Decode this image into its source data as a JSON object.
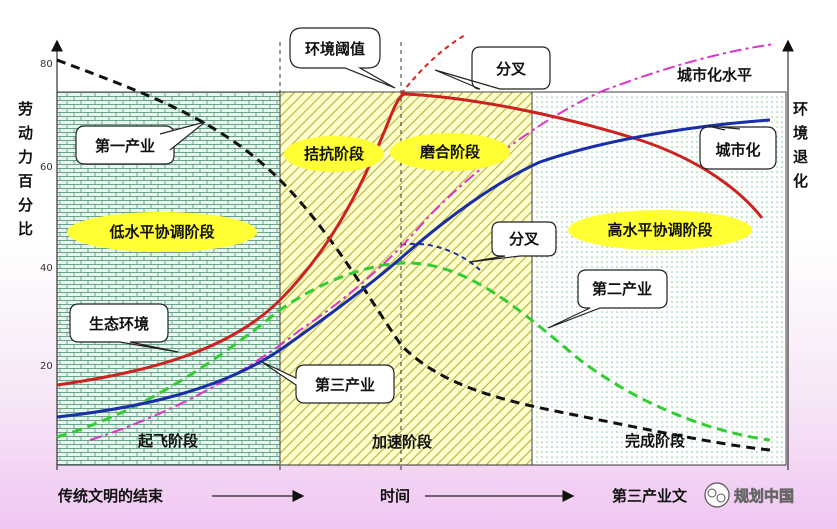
{
  "y_axis": {
    "label_chars": [
      "劳",
      "动",
      "力",
      "百",
      "分",
      "比"
    ],
    "ticks": [
      "80",
      "60",
      "40",
      "20"
    ]
  },
  "right_axis": {
    "label_chars": [
      "环",
      "境",
      "退",
      "化"
    ]
  },
  "stages": {
    "takeoff": "起飞阶段",
    "acceleration": "加速阶段",
    "completion": "完成阶段"
  },
  "phases": {
    "resist": "拮抗阶段",
    "adapt": "磨合阶段",
    "low_coord": "低水平协调阶段",
    "high_coord": "高水平协调阶段"
  },
  "callouts": {
    "threshold": "环境阈值",
    "fork_top": "分叉",
    "fork_mid": "分叉",
    "primary": "第一产业",
    "secondary": "第二产业",
    "tertiary": "第三产业",
    "ecology": "生态环境",
    "urbanization": "城市化",
    "urban_level": "城市化水平"
  },
  "bottom": {
    "left": "传统文明的结束",
    "center": "时间",
    "right": "第三产业文",
    "watermark": "规划中国"
  },
  "colors": {
    "primary": "#111111",
    "secondary": "#33cc33",
    "tertiary": "#dd33cc",
    "ecology": "#cc2222",
    "urbanization": "#1a2ea8",
    "ellipse": "#ffff33"
  }
}
